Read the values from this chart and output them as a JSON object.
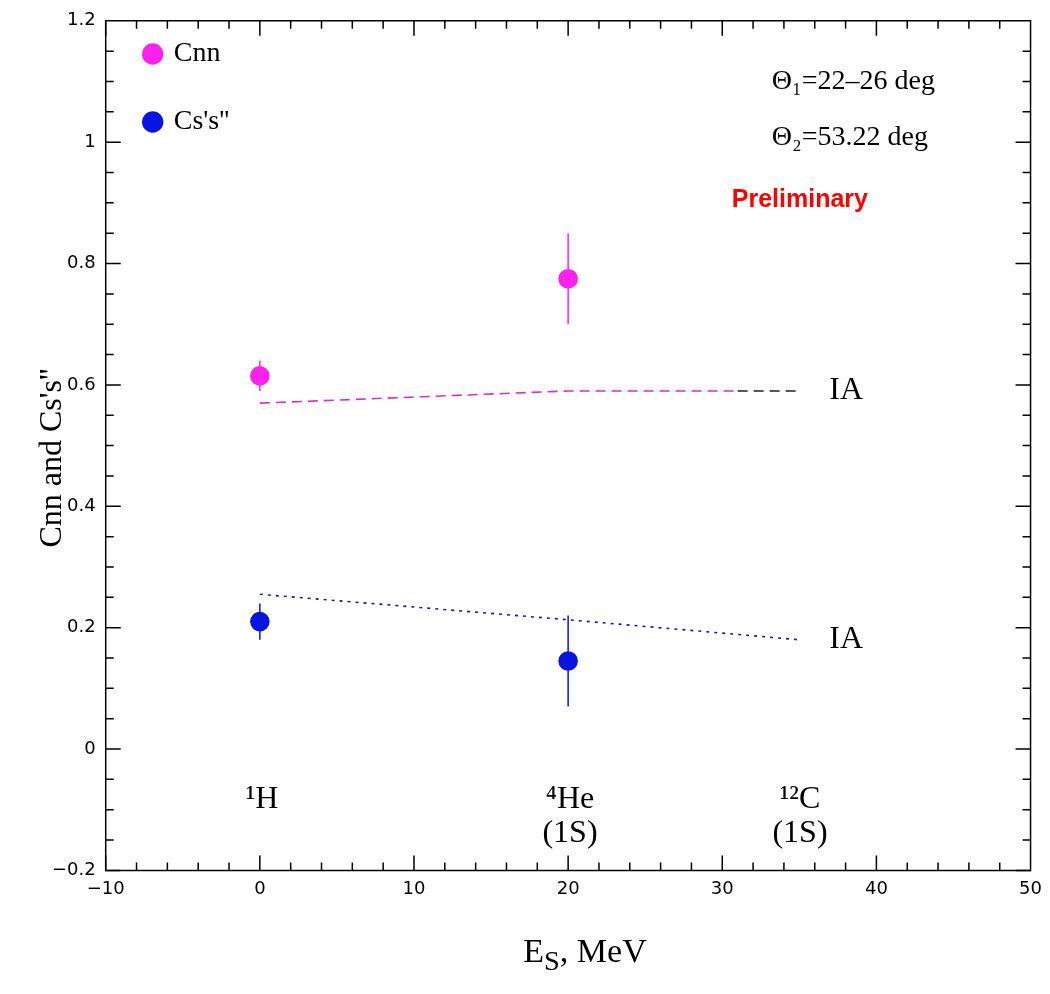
{
  "chart_data": {
    "type": "scatter",
    "xlabel": "E$_{S}$, MeV",
    "ylabel": "Cnn and Cs's''",
    "xlim": [
      -10,
      50
    ],
    "xticks": [
      -10,
      0,
      10,
      20,
      30,
      40,
      50
    ],
    "ylim": [
      -0.2,
      1.2
    ],
    "yticks": [
      -0.2,
      0,
      0.2,
      0.4,
      0.6,
      0.8,
      1,
      1.2
    ],
    "grid": false,
    "legend": "top left",
    "marker": "circle",
    "series": [
      {
        "name": "Cnn",
        "color": "#ff22ee",
        "x": [
          0,
          20
        ],
        "values": [
          0.615,
          0.775
        ],
        "errors": [
          0.025,
          0.075
        ]
      },
      {
        "name": "Cs's''",
        "color": "#0a14e0",
        "x": [
          0,
          20
        ],
        "values": [
          0.21,
          0.145
        ],
        "errors": [
          0.03,
          0.075
        ]
      },
      {
        "type": "line",
        "color": "#cc33cc",
        "line_style": "dashed",
        "marker": "none",
        "x": [
          0,
          10,
          20,
          31
        ],
        "values": [
          0.57,
          0.58,
          0.59,
          0.59
        ]
      },
      {
        "type": "line",
        "name": "IA",
        "color": "#222222",
        "line_style": "dashed",
        "marker": "none",
        "x": [
          31,
          35
        ],
        "values": [
          0.59,
          0.59
        ]
      },
      {
        "type": "line",
        "name": "IA",
        "color": "#1a1a9a",
        "line_style": "dotted",
        "marker": "none",
        "x": [
          0,
          20,
          35
        ],
        "values": [
          0.255,
          0.213,
          0.18
        ]
      }
    ],
    "annotations": [
      "Θ₁=22–26 deg",
      "Θ₂=53.22 deg",
      "Preliminary",
      "¹H",
      "⁴He\n(1S)",
      "¹²C\n(1S)"
    ]
  }
}
